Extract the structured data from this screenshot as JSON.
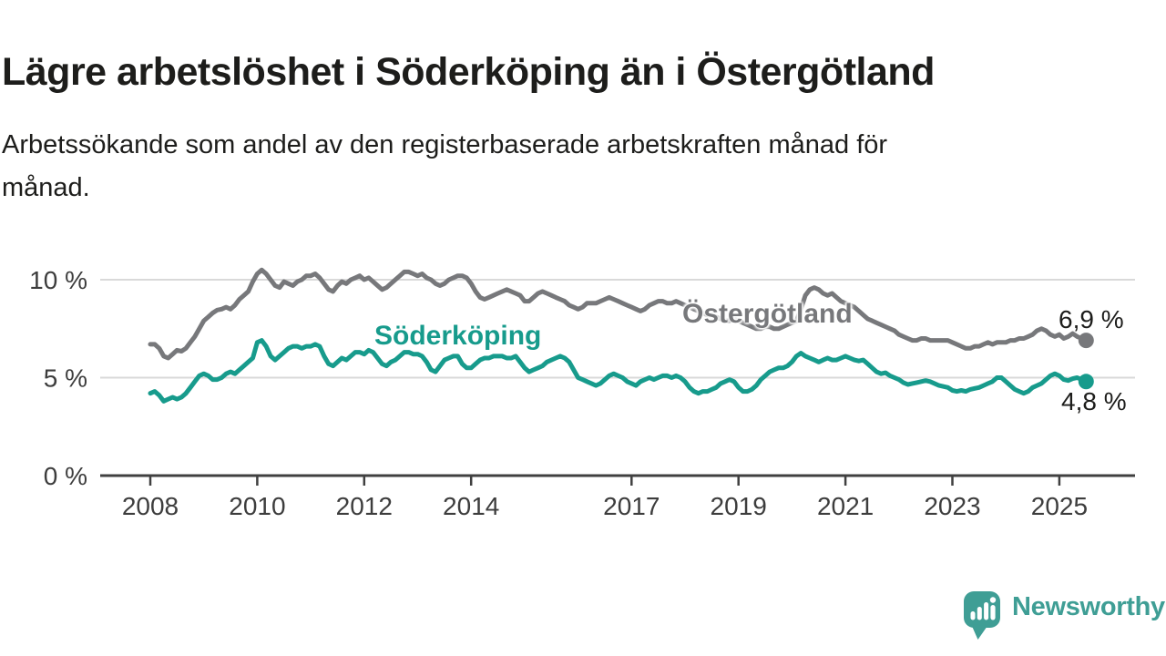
{
  "title": "Lägre arbetslöshet i Söderköping än i Östergötland",
  "subtitle_lines": [
    "Arbetssökande som andel av den registerbaserade arbetskraften månad för",
    "månad."
  ],
  "colors": {
    "soderkoping": "#179B8C",
    "ostergotland": "#77787B",
    "grid": "#d9d9d9",
    "axis": "#404040",
    "text": "#1d1d1b",
    "logo": "#3F9E95"
  },
  "logo": {
    "text": "Newsworthy"
  },
  "chart_data": {
    "type": "line",
    "title": "Lägre arbetslöshet i Söderköping än i Östergötland",
    "subtitle": "Arbetssökande som andel av den registerbaserade arbetskraften månad för månad.",
    "x_unit": "month",
    "x_start_year": 2008,
    "x_end": "2025-07",
    "x_tick_years": [
      2008,
      2010,
      2012,
      2014,
      2017,
      2019,
      2021,
      2023,
      2025
    ],
    "ylim": [
      0,
      11.6
    ],
    "grid": "horizontal",
    "legend_position": "inline-labels",
    "y_ticks": [
      {
        "value": 10,
        "label": "10 %"
      },
      {
        "value": 5,
        "label": "5 %"
      },
      {
        "value": 0,
        "label": "0 %"
      }
    ],
    "series": [
      {
        "name": "Söderköping",
        "color": "#179B8C",
        "end_label": "4,8 %",
        "end_value": 4.8,
        "values": [
          4.2,
          4.3,
          4.1,
          3.8,
          3.9,
          4.0,
          3.9,
          4.0,
          4.2,
          4.5,
          4.8,
          5.1,
          5.2,
          5.1,
          4.9,
          4.9,
          5.0,
          5.2,
          5.3,
          5.2,
          5.4,
          5.6,
          5.8,
          6.0,
          6.8,
          6.9,
          6.6,
          6.1,
          5.9,
          6.1,
          6.3,
          6.5,
          6.6,
          6.6,
          6.5,
          6.6,
          6.6,
          6.7,
          6.6,
          6.1,
          5.7,
          5.6,
          5.8,
          6.0,
          5.9,
          6.1,
          6.3,
          6.3,
          6.2,
          6.4,
          6.3,
          6.0,
          5.7,
          5.6,
          5.8,
          5.9,
          6.1,
          6.3,
          6.3,
          6.2,
          6.2,
          6.1,
          5.8,
          5.4,
          5.3,
          5.6,
          5.9,
          6.0,
          6.1,
          6.1,
          5.7,
          5.5,
          5.5,
          5.7,
          5.9,
          6.0,
          6.0,
          6.1,
          6.1,
          6.1,
          6.0,
          6.0,
          6.1,
          5.8,
          5.5,
          5.3,
          5.4,
          5.5,
          5.6,
          5.8,
          5.9,
          6.0,
          6.1,
          6.0,
          5.8,
          5.4,
          5.0,
          4.9,
          4.8,
          4.7,
          4.6,
          4.7,
          4.9,
          5.1,
          5.2,
          5.1,
          5.0,
          4.8,
          4.7,
          4.6,
          4.8,
          4.9,
          5.0,
          4.9,
          5.0,
          5.1,
          5.1,
          5.0,
          5.1,
          5.0,
          4.8,
          4.5,
          4.3,
          4.2,
          4.3,
          4.3,
          4.4,
          4.5,
          4.7,
          4.8,
          4.9,
          4.8,
          4.5,
          4.3,
          4.3,
          4.4,
          4.6,
          4.9,
          5.1,
          5.3,
          5.4,
          5.5,
          5.5,
          5.6,
          5.8,
          6.1,
          6.25,
          6.1,
          6.0,
          5.9,
          5.8,
          5.9,
          6.0,
          5.9,
          5.9,
          6.0,
          6.1,
          6.0,
          5.9,
          5.85,
          5.9,
          5.7,
          5.5,
          5.3,
          5.2,
          5.25,
          5.1,
          5.0,
          4.9,
          4.75,
          4.65,
          4.7,
          4.75,
          4.8,
          4.85,
          4.8,
          4.7,
          4.6,
          4.55,
          4.5,
          4.35,
          4.3,
          4.35,
          4.3,
          4.4,
          4.45,
          4.5,
          4.6,
          4.7,
          4.8,
          5.0,
          5.0,
          4.8,
          4.6,
          4.4,
          4.3,
          4.2,
          4.3,
          4.5,
          4.6,
          4.7,
          4.9,
          5.1,
          5.2,
          5.1,
          4.9,
          4.85,
          4.95,
          5.0,
          4.9,
          4.8
        ]
      },
      {
        "name": "Östergötland",
        "color": "#77787B",
        "end_label": "6,9 %",
        "end_value": 6.9,
        "values": [
          6.7,
          6.7,
          6.5,
          6.1,
          6.0,
          6.2,
          6.4,
          6.35,
          6.5,
          6.8,
          7.1,
          7.5,
          7.9,
          8.1,
          8.3,
          8.45,
          8.5,
          8.6,
          8.5,
          8.7,
          9.0,
          9.2,
          9.4,
          9.9,
          10.3,
          10.5,
          10.3,
          10.0,
          9.7,
          9.6,
          9.9,
          9.8,
          9.7,
          9.9,
          10.0,
          10.2,
          10.2,
          10.3,
          10.1,
          9.8,
          9.5,
          9.4,
          9.7,
          9.9,
          9.8,
          10.0,
          10.1,
          10.2,
          10.0,
          10.1,
          9.9,
          9.7,
          9.5,
          9.6,
          9.8,
          10.0,
          10.2,
          10.4,
          10.4,
          10.3,
          10.2,
          10.3,
          10.1,
          10.0,
          9.8,
          9.7,
          9.8,
          10.0,
          10.1,
          10.2,
          10.2,
          10.1,
          9.8,
          9.4,
          9.1,
          9.0,
          9.1,
          9.2,
          9.3,
          9.4,
          9.5,
          9.4,
          9.3,
          9.2,
          8.9,
          8.9,
          9.1,
          9.3,
          9.4,
          9.3,
          9.2,
          9.1,
          9.0,
          8.9,
          8.7,
          8.6,
          8.5,
          8.6,
          8.8,
          8.8,
          8.8,
          8.9,
          9.0,
          9.1,
          9.0,
          8.9,
          8.8,
          8.7,
          8.6,
          8.5,
          8.4,
          8.5,
          8.7,
          8.8,
          8.9,
          8.9,
          8.8,
          8.8,
          8.9,
          8.8,
          8.7,
          8.6,
          8.5,
          8.4,
          8.3,
          8.2,
          8.2,
          8.1,
          8.0,
          7.9,
          7.9,
          8.0,
          7.9,
          7.8,
          7.7,
          7.6,
          7.5,
          7.5,
          7.6,
          7.6,
          7.5,
          7.5,
          7.6,
          7.7,
          7.8,
          7.9,
          8.5,
          9.2,
          9.5,
          9.6,
          9.5,
          9.3,
          9.2,
          9.3,
          9.1,
          8.9,
          8.8,
          8.7,
          8.6,
          8.4,
          8.2,
          8.0,
          7.9,
          7.8,
          7.7,
          7.6,
          7.5,
          7.4,
          7.2,
          7.1,
          7.0,
          6.9,
          6.9,
          7.0,
          7.0,
          6.9,
          6.9,
          6.9,
          6.9,
          6.9,
          6.8,
          6.7,
          6.6,
          6.5,
          6.5,
          6.6,
          6.6,
          6.7,
          6.8,
          6.7,
          6.8,
          6.8,
          6.8,
          6.9,
          6.9,
          7.0,
          7.0,
          7.1,
          7.2,
          7.4,
          7.5,
          7.4,
          7.2,
          7.1,
          7.2,
          7.0,
          7.1,
          7.25,
          7.1,
          7.0,
          6.9
        ]
      }
    ]
  }
}
